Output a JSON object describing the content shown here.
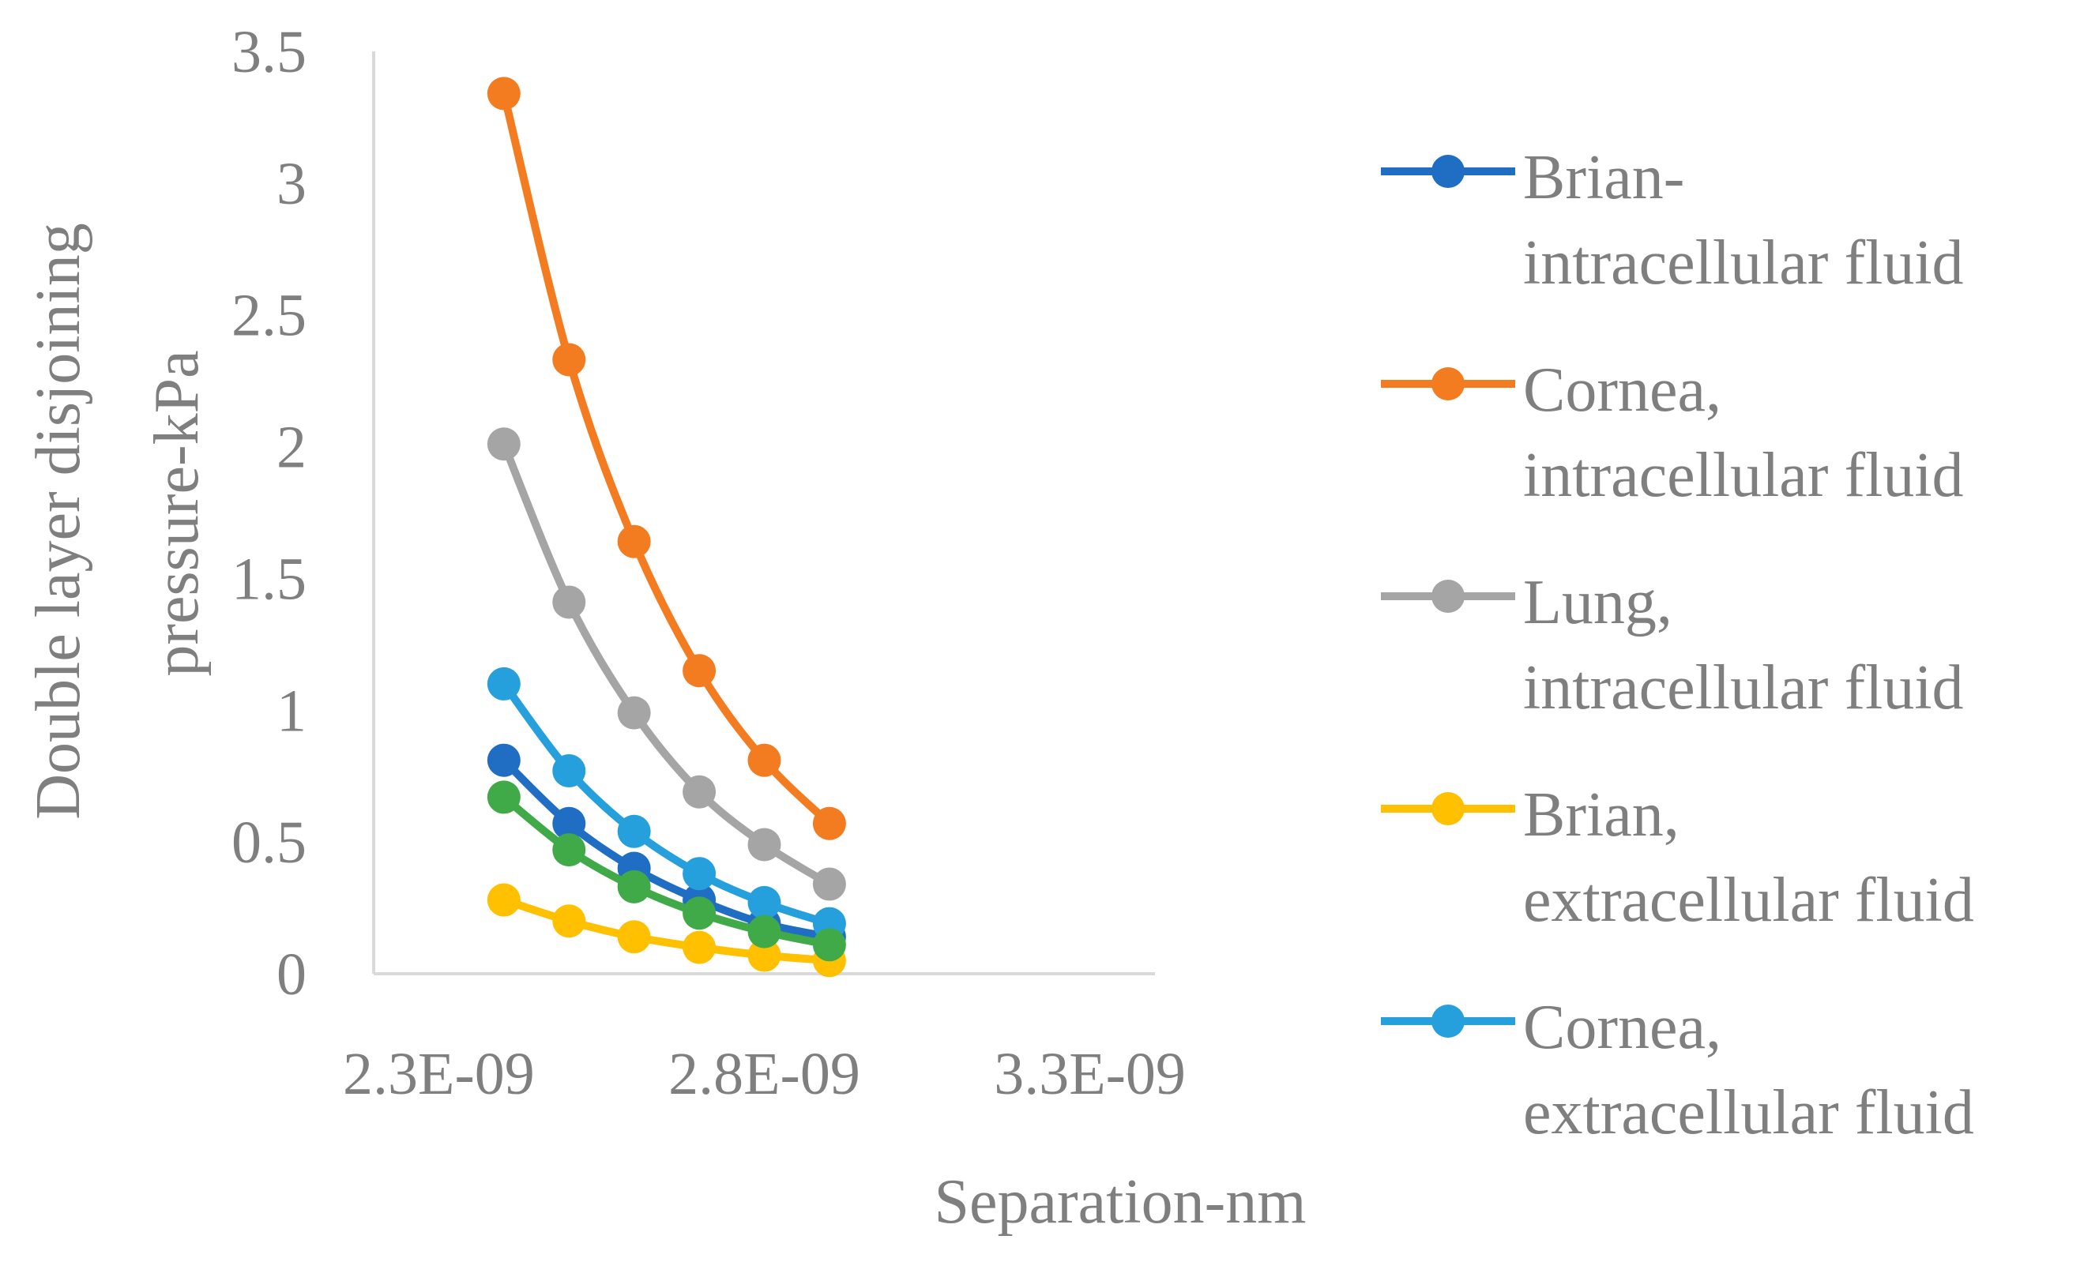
{
  "chart_data": {
    "type": "line",
    "title": "",
    "xlabel": "Separation-nm",
    "ylabel_lines": [
      "Double layer disjoining",
      "pressure-kPa"
    ],
    "xlim": [
      2.2e-09,
      3.4e-09
    ],
    "ylim": [
      0,
      3.5
    ],
    "x_ticks": [
      2.3e-09,
      2.8e-09,
      3.3e-09
    ],
    "x_tick_labels": [
      "2.3E-09",
      "2.8E-09",
      "3.3E-09"
    ],
    "y_ticks": [
      0,
      0.5,
      1,
      1.5,
      2,
      2.5,
      3,
      3.5
    ],
    "y_tick_labels": [
      "0",
      "0.5",
      "1",
      "1.5",
      "2",
      "2.5",
      "3",
      "3.5"
    ],
    "grid": false,
    "legend_position": "right",
    "x": [
      2.4e-09,
      2.5e-09,
      2.6e-09,
      2.7e-09,
      2.8e-09,
      2.9e-09
    ],
    "series": [
      {
        "name": "Brian-intracellular fluid",
        "legend_lines": [
          "Brian-",
          "intracellular fluid"
        ],
        "color": "#1f6ec4",
        "values": [
          0.81,
          0.57,
          0.4,
          0.28,
          0.19,
          0.14
        ]
      },
      {
        "name": "Cornea, intracellular fluid",
        "legend_lines": [
          "Cornea,",
          "intracellular fluid"
        ],
        "color": "#f47c20",
        "values": [
          3.34,
          2.33,
          1.64,
          1.15,
          0.81,
          0.57
        ]
      },
      {
        "name": "Lung, intracellular fluid",
        "legend_lines": [
          "Lung,",
          "intracellular fluid"
        ],
        "color": "#a5a5a5",
        "values": [
          2.01,
          1.41,
          0.99,
          0.69,
          0.49,
          0.34
        ]
      },
      {
        "name": "Brian, extracellular fluid",
        "legend_lines": [
          "Brian,",
          "extracellular fluid"
        ],
        "color": "#ffc000",
        "values": [
          0.28,
          0.2,
          0.14,
          0.1,
          0.07,
          0.05
        ]
      },
      {
        "name": "Cornea, extracellular fluid",
        "legend_lines": [
          "Cornea,",
          "extracellular fluid"
        ],
        "color": "#26a0dc",
        "values": [
          1.1,
          0.77,
          0.54,
          0.38,
          0.27,
          0.19
        ]
      },
      {
        "name": "",
        "legend_lines": [],
        "color": "#3faa47",
        "values": [
          0.67,
          0.47,
          0.33,
          0.23,
          0.16,
          0.11
        ]
      }
    ]
  }
}
